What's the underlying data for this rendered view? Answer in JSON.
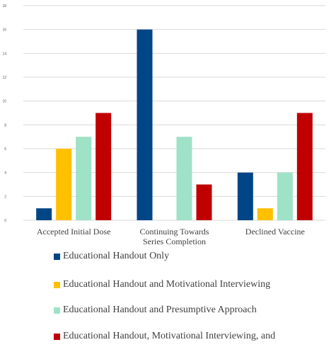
{
  "chart_data": {
    "type": "bar",
    "title": "",
    "xlabel": "",
    "ylabel": "",
    "ylim": [
      0,
      18
    ],
    "yticks": [
      0,
      2,
      4,
      6,
      8,
      10,
      12,
      14,
      16,
      18
    ],
    "grid": true,
    "legend_placement": "bottom",
    "categories": [
      "Accepted Initial Dose",
      "Continuing Towards Series Completion",
      "Declined Vaccine"
    ],
    "category_lines": [
      [
        "Accepted Initial Dose"
      ],
      [
        "Continuing Towards",
        "Series Completion"
      ],
      [
        "Declined Vaccine"
      ]
    ],
    "series": [
      {
        "name": "Educational Handout Only",
        "color": "#004586",
        "values": [
          1,
          16,
          4
        ]
      },
      {
        "name": "Educational Handout and Motivational Interviewing",
        "color": "#ffc000",
        "values": [
          6,
          0,
          1
        ]
      },
      {
        "name": "Educational Handout and Presumptive Approach",
        "color": "#9ee2c8",
        "values": [
          7,
          7,
          4
        ]
      },
      {
        "name": "Educational Handout, Motivational Interviewing, and",
        "color": "#c00000",
        "values": [
          9,
          3,
          9
        ]
      }
    ]
  }
}
